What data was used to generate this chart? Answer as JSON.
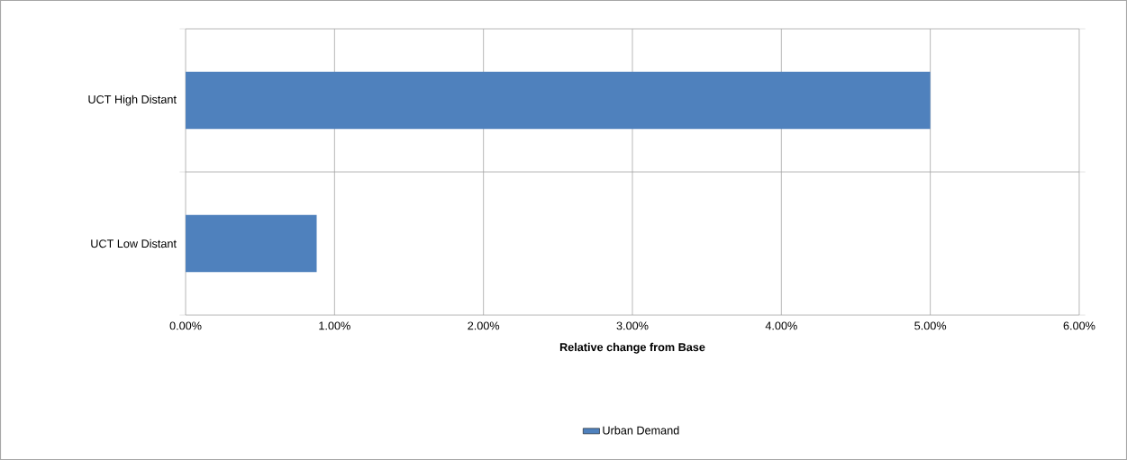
{
  "chart_data": {
    "type": "bar",
    "orientation": "horizontal",
    "categories": [
      "UCT High Distant",
      "UCT Low Distant"
    ],
    "series": [
      {
        "name": "Urban Demand",
        "color": "#4f81bd",
        "values": [
          5.0,
          0.88
        ]
      }
    ],
    "xlabel": "Relative change from Base",
    "xlim": [
      0,
      6
    ],
    "xticks": [
      {
        "value": 0,
        "label": "0.00%"
      },
      {
        "value": 1,
        "label": "1.00%"
      },
      {
        "value": 2,
        "label": "2.00%"
      },
      {
        "value": 3,
        "label": "3.00%"
      },
      {
        "value": 4,
        "label": "4.00%"
      },
      {
        "value": 5,
        "label": "5.00%"
      },
      {
        "value": 6,
        "label": "6.00%"
      }
    ],
    "grid": true,
    "legend": "bottom"
  }
}
